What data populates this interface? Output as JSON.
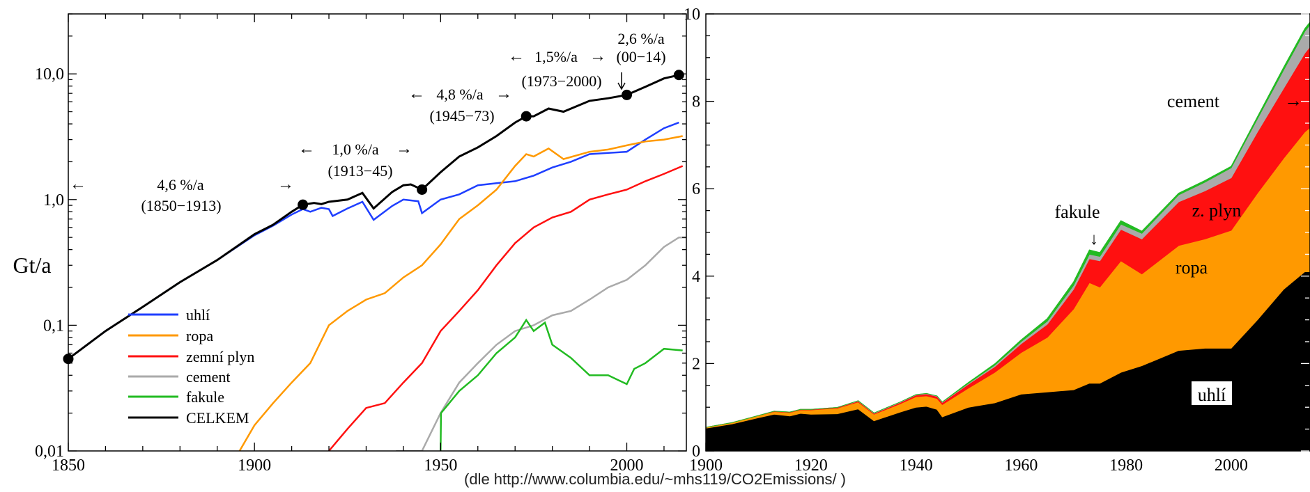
{
  "source_note": "(dle http://www.columbia.edu/~mhs119/CO2Emissions/ )",
  "colors": {
    "uhli": "#1f3fff",
    "ropa": "#ff9900",
    "zemni_plyn": "#ff1010",
    "cement": "#aaaaaa",
    "fakule": "#22bb22",
    "celkem": "#000000"
  },
  "chart_data": [
    {
      "type": "line",
      "ylabel": "Gt/a",
      "yscale": "log",
      "xlim": [
        1850,
        2016
      ],
      "ylim": [
        0.01,
        30
      ],
      "x_ticks": [
        "1850",
        "1900",
        "1950",
        "2000"
      ],
      "y_ticks": [
        {
          "value": 0.01,
          "label": "0,01"
        },
        {
          "value": 0.1,
          "label": "0,1"
        },
        {
          "value": 1,
          "label": "1,0"
        },
        {
          "value": 10,
          "label": "10,0"
        }
      ],
      "legend_position": "bottom-left",
      "series": [
        {
          "name": "uhlí",
          "color_key": "uhli",
          "x": [
            1850,
            1860,
            1870,
            1880,
            1890,
            1900,
            1905,
            1910,
            1913,
            1915,
            1918,
            1920,
            1921,
            1925,
            1929,
            1932,
            1937,
            1940,
            1944,
            1945,
            1950,
            1955,
            1960,
            1965,
            1970,
            1975,
            1980,
            1985,
            1990,
            1995,
            2000,
            2005,
            2010,
            2014
          ],
          "y": [
            0.054,
            0.09,
            0.14,
            0.22,
            0.33,
            0.52,
            0.62,
            0.76,
            0.84,
            0.8,
            0.86,
            0.84,
            0.74,
            0.85,
            0.96,
            0.69,
            0.89,
            1.0,
            0.97,
            0.78,
            1.0,
            1.1,
            1.3,
            1.35,
            1.4,
            1.55,
            1.8,
            2.0,
            2.3,
            2.35,
            2.4,
            3.0,
            3.7,
            4.1
          ]
        },
        {
          "name": "ropa",
          "color_key": "ropa",
          "x": [
            1896,
            1900,
            1905,
            1910,
            1915,
            1920,
            1925,
            1930,
            1935,
            1940,
            1945,
            1950,
            1955,
            1960,
            1965,
            1970,
            1973,
            1975,
            1979,
            1983,
            1990,
            1995,
            2000,
            2005,
            2010,
            2015
          ],
          "y": [
            0.01,
            0.016,
            0.024,
            0.035,
            0.05,
            0.1,
            0.13,
            0.16,
            0.18,
            0.24,
            0.3,
            0.44,
            0.7,
            0.9,
            1.2,
            1.85,
            2.3,
            2.2,
            2.55,
            2.1,
            2.4,
            2.5,
            2.7,
            2.9,
            3.0,
            3.2
          ]
        },
        {
          "name": "zemní plyn",
          "color_key": "zemni_plyn",
          "x": [
            1920,
            1925,
            1930,
            1935,
            1940,
            1945,
            1950,
            1955,
            1960,
            1965,
            1970,
            1975,
            1980,
            1985,
            1990,
            1995,
            2000,
            2005,
            2010,
            2015
          ],
          "y": [
            0.01,
            0.015,
            0.022,
            0.024,
            0.035,
            0.05,
            0.09,
            0.13,
            0.19,
            0.3,
            0.45,
            0.6,
            0.72,
            0.8,
            1.0,
            1.1,
            1.2,
            1.4,
            1.6,
            1.85
          ]
        },
        {
          "name": "cement",
          "color_key": "cement",
          "x": [
            1938,
            1945,
            1950,
            1955,
            1960,
            1965,
            1970,
            1975,
            1980,
            1985,
            1990,
            1995,
            2000,
            2005,
            2010,
            2014,
            2016
          ],
          "y": [
            0.01,
            0.01,
            0.02,
            0.035,
            0.05,
            0.07,
            0.09,
            0.1,
            0.12,
            0.13,
            0.16,
            0.2,
            0.23,
            0.3,
            0.42,
            0.5,
            0.5
          ]
        },
        {
          "name": "fakule",
          "color_key": "fakule",
          "x": [
            1950,
            1950.1,
            1955,
            1960,
            1965,
            1970,
            1973,
            1975,
            1978,
            1980,
            1985,
            1990,
            1995,
            2000,
            2002,
            2005,
            2010,
            2015
          ],
          "y": [
            0.01,
            0.02,
            0.03,
            0.04,
            0.06,
            0.08,
            0.11,
            0.09,
            0.105,
            0.07,
            0.055,
            0.04,
            0.04,
            0.034,
            0.045,
            0.05,
            0.065,
            0.063
          ]
        },
        {
          "name": "CELKEM",
          "color_key": "celkem",
          "x": [
            1850,
            1860,
            1870,
            1880,
            1890,
            1900,
            1905,
            1910,
            1913,
            1916,
            1918,
            1920,
            1925,
            1929,
            1932,
            1937,
            1940,
            1942,
            1945,
            1950,
            1955,
            1960,
            1965,
            1970,
            1973,
            1975,
            1979,
            1983,
            1990,
            1995,
            2000,
            2005,
            2010,
            2014
          ],
          "y": [
            0.054,
            0.09,
            0.14,
            0.22,
            0.33,
            0.53,
            0.63,
            0.8,
            0.91,
            0.94,
            0.92,
            0.96,
            1.0,
            1.13,
            0.85,
            1.15,
            1.3,
            1.32,
            1.2,
            1.65,
            2.2,
            2.6,
            3.2,
            4.1,
            4.6,
            4.6,
            5.3,
            5.0,
            6.1,
            6.4,
            6.8,
            7.9,
            9.2,
            9.8
          ]
        }
      ],
      "markers": [
        {
          "x": 1850,
          "y": 0.054
        },
        {
          "x": 1913,
          "y": 0.91
        },
        {
          "x": 1945,
          "y": 1.2
        },
        {
          "x": 1973,
          "y": 4.6
        },
        {
          "x": 2000,
          "y": 6.8
        },
        {
          "x": 2014,
          "y": 9.8
        }
      ],
      "annotations": [
        {
          "rate": "4,6 %/a",
          "period": "(1850−1913)",
          "arrow_left": "←",
          "arrow_right": "→"
        },
        {
          "rate": "1,0 %/a",
          "period": "(1913−45)",
          "arrow_left": "←",
          "arrow_right": "→"
        },
        {
          "rate": "4,8 %/a",
          "period": "(1945−73)",
          "arrow_left": "←",
          "arrow_right": "→"
        },
        {
          "rate": "1,5%/a",
          "period": "(1973−2000)",
          "arrow_left": "←",
          "arrow_right": "→"
        },
        {
          "rate": "2,6 %/a",
          "period": "(00−14)"
        }
      ]
    },
    {
      "type": "area",
      "stacked": true,
      "xlim": [
        1900,
        2015
      ],
      "ylim": [
        0,
        10
      ],
      "x_ticks": [
        "1900",
        "1920",
        "1940",
        "1960",
        "1980",
        "2000"
      ],
      "y_ticks": [
        "0",
        "2",
        "4",
        "6",
        "8",
        "10"
      ],
      "x": [
        1900,
        1905,
        1910,
        1913,
        1916,
        1918,
        1920,
        1925,
        1929,
        1932,
        1937,
        1940,
        1942,
        1944,
        1945,
        1950,
        1955,
        1960,
        1965,
        1970,
        1973,
        1975,
        1979,
        1983,
        1990,
        1995,
        2000,
        2005,
        2010,
        2014,
        2015
      ],
      "series": [
        {
          "name": "uhlí",
          "color_key": "celkem",
          "values": [
            0.52,
            0.62,
            0.76,
            0.84,
            0.8,
            0.86,
            0.84,
            0.85,
            0.96,
            0.69,
            0.89,
            1.0,
            1.02,
            0.95,
            0.78,
            1.0,
            1.1,
            1.3,
            1.35,
            1.4,
            1.55,
            1.55,
            1.8,
            1.95,
            2.3,
            2.35,
            2.35,
            3.0,
            3.7,
            4.1,
            4.1
          ]
        },
        {
          "name": "ropa",
          "color_key": "ropa",
          "values": [
            0.02,
            0.03,
            0.05,
            0.06,
            0.08,
            0.08,
            0.1,
            0.13,
            0.16,
            0.15,
            0.19,
            0.24,
            0.24,
            0.25,
            0.28,
            0.44,
            0.7,
            0.95,
            1.25,
            1.85,
            2.3,
            2.2,
            2.55,
            2.1,
            2.4,
            2.5,
            2.7,
            2.9,
            3.0,
            3.2,
            3.3
          ]
        },
        {
          "name": "z. plyn",
          "color_key": "zemni_plyn",
          "values": [
            0.0,
            0.0,
            0.0,
            0.01,
            0.01,
            0.01,
            0.01,
            0.015,
            0.02,
            0.02,
            0.03,
            0.04,
            0.045,
            0.05,
            0.05,
            0.09,
            0.13,
            0.2,
            0.3,
            0.45,
            0.55,
            0.6,
            0.72,
            0.8,
            1.0,
            1.1,
            1.2,
            1.4,
            1.6,
            1.8,
            1.85
          ]
        },
        {
          "name": "cement",
          "color_key": "cement",
          "values": [
            0.0,
            0.0,
            0.0,
            0.0,
            0.0,
            0.0,
            0.0,
            0.0,
            0.01,
            0.01,
            0.01,
            0.01,
            0.01,
            0.01,
            0.01,
            0.02,
            0.035,
            0.05,
            0.07,
            0.09,
            0.1,
            0.1,
            0.12,
            0.13,
            0.16,
            0.2,
            0.23,
            0.3,
            0.42,
            0.5,
            0.5
          ]
        },
        {
          "name": "fakule",
          "color_key": "fakule",
          "values": [
            0,
            0,
            0,
            0,
            0,
            0,
            0,
            0,
            0,
            0,
            0,
            0,
            0,
            0,
            0,
            0.02,
            0.03,
            0.04,
            0.06,
            0.08,
            0.1,
            0.09,
            0.08,
            0.05,
            0.04,
            0.04,
            0.035,
            0.05,
            0.065,
            0.063,
            0.063
          ]
        }
      ],
      "annotations": [
        {
          "text": "cement",
          "arrow": "→"
        },
        {
          "text": "fakule",
          "arrow": "↓"
        },
        {
          "text": "z. plyn"
        },
        {
          "text": "ropa"
        },
        {
          "text": "uhlí"
        }
      ]
    }
  ]
}
